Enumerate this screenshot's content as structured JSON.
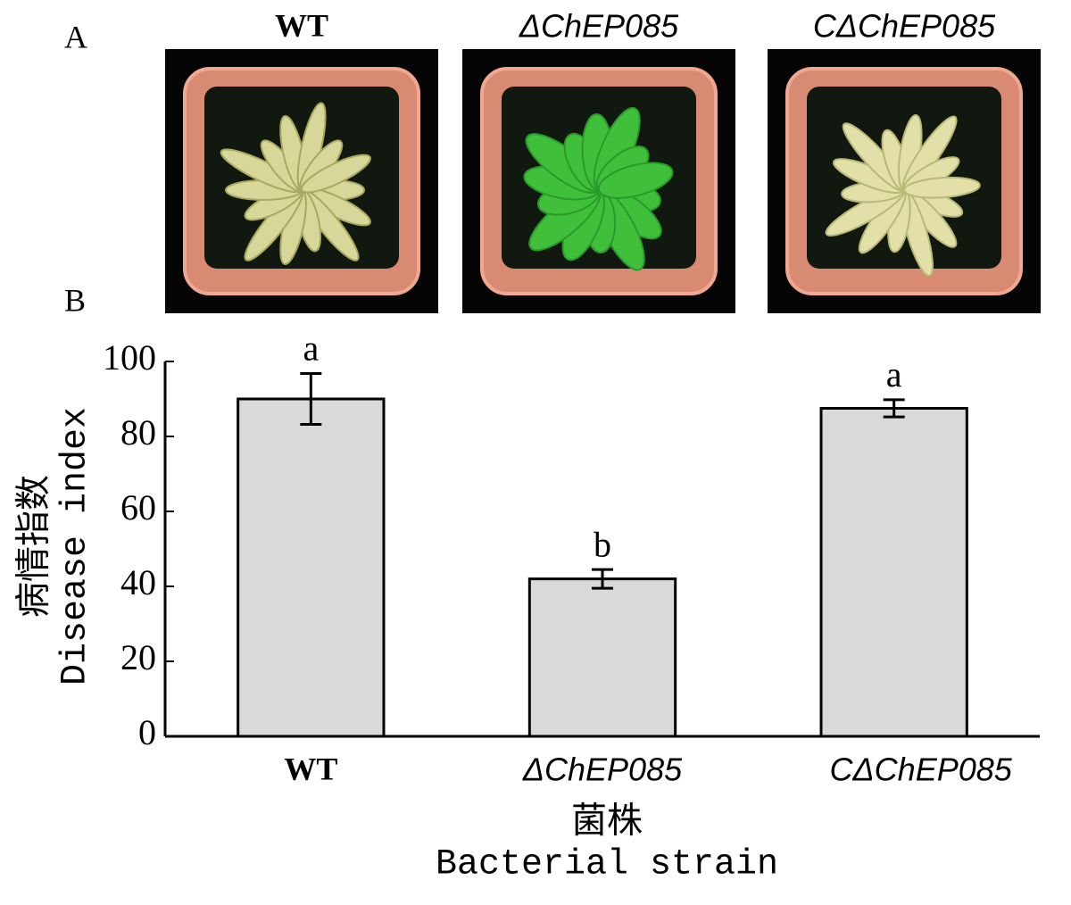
{
  "panel_a": {
    "label": "A",
    "photos": [
      "WT",
      "ΔChEP085",
      "CΔChEP085"
    ]
  },
  "panel_b": {
    "label": "B"
  },
  "chart_data": {
    "type": "bar",
    "categories": [
      "WT",
      "ΔChEP085",
      "CΔChEP085"
    ],
    "values": [
      90,
      42,
      87.5
    ],
    "errors": [
      6.8,
      2.5,
      2.3
    ],
    "annotations": [
      "a",
      "b",
      "a"
    ],
    "color": "#d9d9d9",
    "ylim": [
      0,
      100
    ],
    "yticks": [
      0,
      20,
      40,
      60,
      80,
      100
    ],
    "y_label": [
      "病情指数",
      "Disease index"
    ],
    "x_label": [
      "菌株",
      "Bacterial strain"
    ]
  }
}
